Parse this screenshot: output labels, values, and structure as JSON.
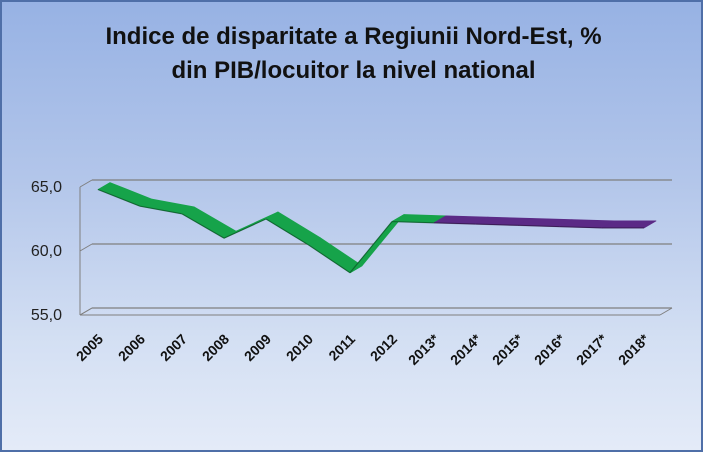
{
  "chart_data": {
    "type": "line",
    "title_line1": "Indice de disparitate a Regiunii Nord-Est, %",
    "title_line2": "din PIB/locuitor la nivel national",
    "categories": [
      "2005",
      "2006",
      "2007",
      "2008",
      "2009",
      "2010",
      "2011",
      "2012",
      "2013*",
      "2014*",
      "2015*",
      "2016*",
      "2017*",
      "2018*"
    ],
    "series": [
      {
        "values": [
          64.8,
          63.5,
          62.9,
          61.0,
          62.5,
          60.5,
          58.3,
          62.3,
          62.2,
          62.1,
          62.0,
          61.9,
          61.8,
          61.8
        ]
      }
    ],
    "actual_color": "#16a34a",
    "forecast_color": "#5b2a86",
    "actual_until_index": 8,
    "ylim": [
      55,
      65
    ],
    "yticks": [
      "55,0",
      "60,0",
      "65,0"
    ],
    "grid": true,
    "legend": "none"
  }
}
